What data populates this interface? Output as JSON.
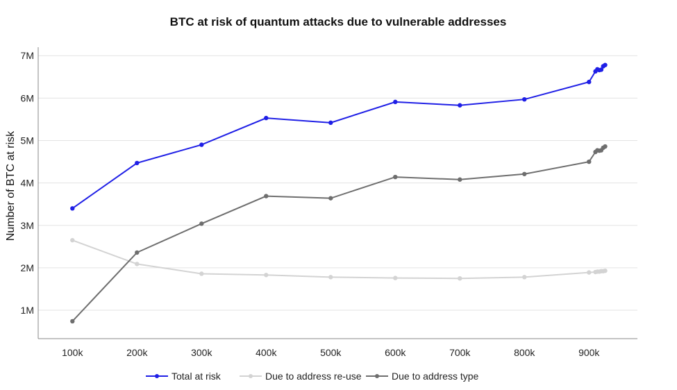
{
  "chart_data": {
    "type": "line",
    "title": "BTC at risk of quantum attacks due to vulnerable addresses",
    "xlabel": "",
    "ylabel": "Number of BTC at risk",
    "xlim": [
      47000,
      975000
    ],
    "ylim": [
      330000,
      7200000
    ],
    "x_ticks": [
      100000,
      200000,
      300000,
      400000,
      500000,
      600000,
      700000,
      800000,
      900000
    ],
    "x_tick_labels": [
      "100k",
      "200k",
      "300k",
      "400k",
      "500k",
      "600k",
      "700k",
      "800k",
      "900k"
    ],
    "y_ticks": [
      1000000,
      2000000,
      3000000,
      4000000,
      5000000,
      6000000,
      7000000
    ],
    "y_tick_labels": [
      "1M",
      "2M",
      "3M",
      "4M",
      "5M",
      "6M",
      "7M"
    ],
    "grid": "horizontal",
    "legend_position": "bottom",
    "x": [
      100000,
      200000,
      300000,
      400000,
      500000,
      600000,
      700000,
      800000,
      900000,
      910000,
      913000,
      916000,
      919000,
      922000,
      925000
    ],
    "series": [
      {
        "name": "Total at risk",
        "color": "#1f1fe6",
        "values": [
          3400000,
          4470000,
          4900000,
          5530000,
          5420000,
          5910000,
          5830000,
          5970000,
          6380000,
          6630000,
          6680000,
          6660000,
          6670000,
          6750000,
          6780000
        ]
      },
      {
        "name": "Due to address re-use",
        "color": "#d3d3d3",
        "values": [
          2650000,
          2090000,
          1860000,
          1830000,
          1780000,
          1760000,
          1750000,
          1780000,
          1890000,
          1900000,
          1910000,
          1910000,
          1920000,
          1920000,
          1930000
        ]
      },
      {
        "name": "Due to address type",
        "color": "#6e6e6e",
        "values": [
          740000,
          2360000,
          3040000,
          3690000,
          3640000,
          4140000,
          4080000,
          4210000,
          4500000,
          4730000,
          4770000,
          4760000,
          4770000,
          4830000,
          4860000
        ]
      }
    ]
  }
}
